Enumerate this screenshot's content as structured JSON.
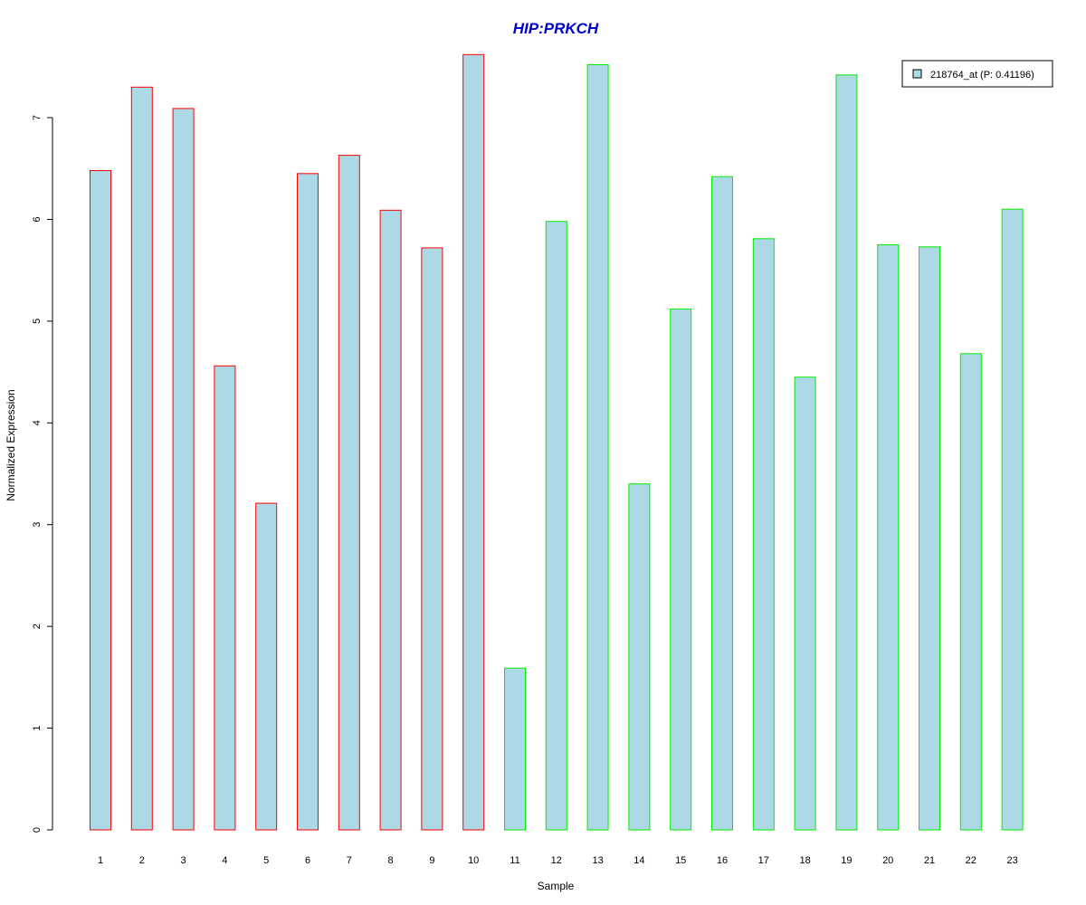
{
  "chart_data": {
    "type": "bar",
    "title": "HIP:PRKCH",
    "xlabel": "Sample",
    "ylabel": "Normalized Expression",
    "categories": [
      "1",
      "2",
      "3",
      "4",
      "5",
      "6",
      "7",
      "8",
      "9",
      "10",
      "11",
      "12",
      "13",
      "14",
      "15",
      "16",
      "17",
      "18",
      "19",
      "20",
      "21",
      "22",
      "23"
    ],
    "values": [
      6.48,
      7.3,
      7.09,
      4.56,
      3.21,
      6.45,
      6.63,
      6.09,
      5.72,
      7.62,
      1.59,
      5.98,
      7.52,
      3.4,
      5.12,
      6.42,
      5.81,
      4.45,
      7.42,
      5.75,
      5.73,
      4.68,
      6.1
    ],
    "groups": [
      1,
      1,
      1,
      1,
      1,
      1,
      1,
      1,
      1,
      1,
      2,
      2,
      2,
      2,
      2,
      2,
      2,
      2,
      2,
      2,
      2,
      2,
      2
    ],
    "group_colors": {
      "1": "#ff0000",
      "2": "#00ee00"
    },
    "bar_fill": "#add8e6",
    "title_color": "#0000cc",
    "yticks": [
      0,
      1,
      2,
      3,
      4,
      5,
      6,
      7
    ],
    "ylim": [
      0,
      7.62
    ],
    "legend": {
      "label": "218764_at (P: 0.41196)",
      "swatch_color": "#add8e6",
      "position": "top-right"
    }
  }
}
